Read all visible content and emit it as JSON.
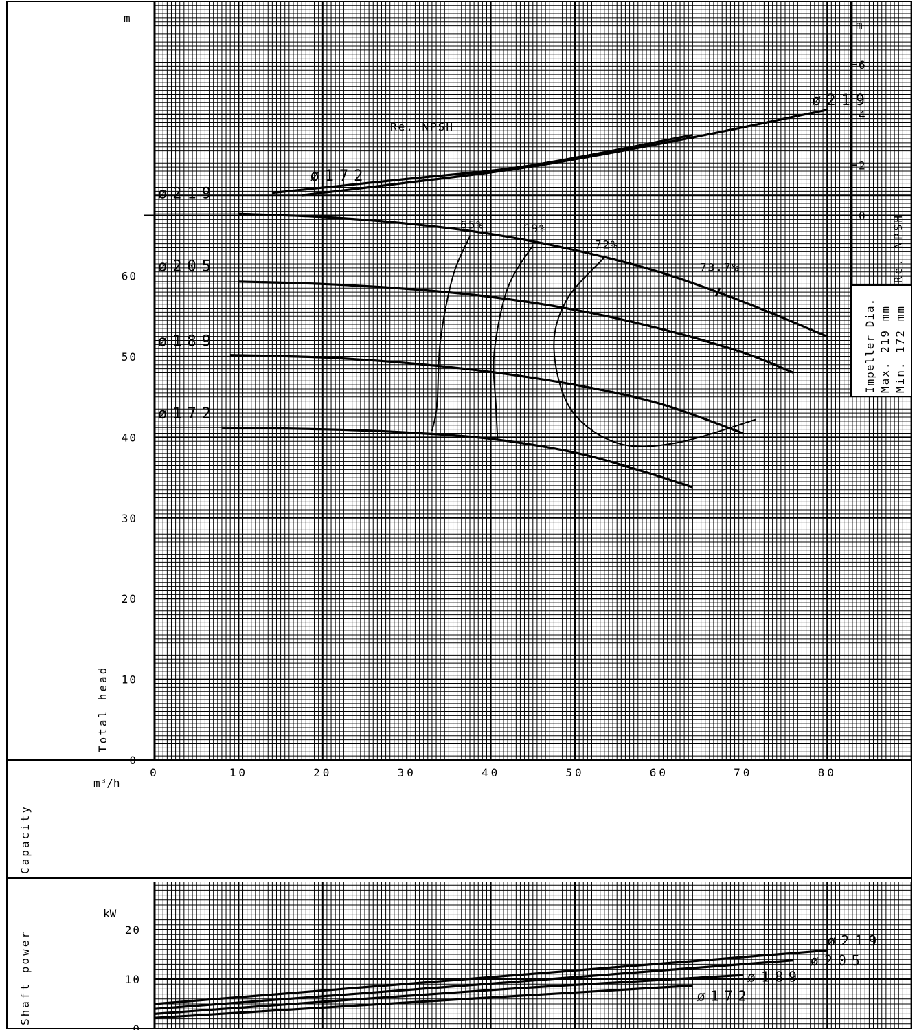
{
  "chart_data": [
    {
      "type": "line",
      "panel": "head",
      "ylabel": "Total head",
      "y_unit": "m",
      "xlabel": "Capacity",
      "x_unit": "m³/h",
      "x_ticks": [
        0,
        10,
        20,
        30,
        40,
        50,
        60,
        70,
        80
      ],
      "y_ticks": [
        0,
        10,
        20,
        30,
        40,
        50,
        60
      ],
      "xlim": [
        0,
        88
      ],
      "ylim": [
        0,
        93
      ],
      "grid": true,
      "series": [
        {
          "name": "ø219",
          "points": [
            [
              0,
              67.7
            ],
            [
              10,
              67.7
            ],
            [
              20,
              67.3
            ],
            [
              30,
              66.5
            ],
            [
              40,
              65.2
            ],
            [
              50,
              63.2
            ],
            [
              60,
              60.5
            ],
            [
              70,
              56.8
            ],
            [
              80,
              52.5
            ]
          ]
        },
        {
          "name": "ø205",
          "points": [
            [
              0,
              59.3
            ],
            [
              10,
              59.3
            ],
            [
              20,
              59
            ],
            [
              30,
              58.4
            ],
            [
              40,
              57.4
            ],
            [
              50,
              55.8
            ],
            [
              60,
              53.5
            ],
            [
              70,
              50.5
            ],
            [
              76,
              48
            ]
          ]
        },
        {
          "name": "ø189",
          "points": [
            [
              0,
              50.2
            ],
            [
              9,
              50.2
            ],
            [
              20,
              49.9
            ],
            [
              30,
              49.2
            ],
            [
              40,
              48.1
            ],
            [
              50,
              46.5
            ],
            [
              60,
              44.2
            ],
            [
              70,
              40.5
            ]
          ]
        },
        {
          "name": "ø172",
          "points": [
            [
              0,
              41.2
            ],
            [
              8,
              41.2
            ],
            [
              20,
              41
            ],
            [
              30,
              40.6
            ],
            [
              40,
              39.8
            ],
            [
              50,
              38.1
            ],
            [
              58,
              35.8
            ],
            [
              64,
              33.8
            ]
          ]
        }
      ],
      "efficiency_curves": [
        {
          "label": "65%",
          "points": [
            [
              37.5,
              64.9
            ],
            [
              35.5,
              60
            ],
            [
              34,
              52
            ],
            [
              33.6,
              44
            ],
            [
              33,
              40.8
            ]
          ]
        },
        {
          "label": "69%",
          "points": [
            [
              45,
              63.8
            ],
            [
              42,
              58.5
            ],
            [
              40.4,
              50.5
            ],
            [
              40.6,
              44
            ],
            [
              40.8,
              39.8
            ]
          ]
        },
        {
          "label": "72%",
          "points": [
            [
              53.5,
              62.3
            ],
            [
              49,
              57
            ],
            [
              47.5,
              51
            ],
            [
              49.5,
              43.5
            ],
            [
              55,
              39.3
            ],
            [
              62,
              39.3
            ],
            [
              71.5,
              42.2
            ]
          ]
        }
      ],
      "annotations": [
        {
          "text": "65%",
          "x": 37.5,
          "y": 65.9
        },
        {
          "text": "69%",
          "x": 45,
          "y": 65.4
        },
        {
          "text": "72%",
          "x": 53.5,
          "y": 63.4
        },
        {
          "text": "73.7%",
          "x": 66,
          "y": 60.6
        }
      ],
      "best_efficiency_marker": {
        "x": 67,
        "y": 58
      },
      "head_curve_labels": [
        {
          "text": "ø219",
          "y": 70.3
        },
        {
          "text": "ø205",
          "y": 61.3
        },
        {
          "text": "ø189",
          "y": 52
        },
        {
          "text": "ø172",
          "y": 43
        }
      ]
    },
    {
      "type": "line",
      "panel": "npsh",
      "title": "Re. NPSH",
      "ylabel": "Re. NPSH",
      "y_unit": "m",
      "y_ticks": [
        0,
        2,
        4,
        6
      ],
      "series": [
        {
          "name": "ø219",
          "points": [
            [
              17.5,
              0.8
            ],
            [
              30,
              1.3
            ],
            [
              45,
              1.95
            ],
            [
              64,
              3.1
            ],
            [
              80,
              4.2
            ]
          ]
        },
        {
          "name": "ø172",
          "points": [
            [
              14,
              0.9
            ],
            [
              30,
              1.45
            ],
            [
              45,
              2.0
            ],
            [
              64,
              3.2
            ]
          ]
        }
      ],
      "curve_labels": [
        {
          "text": "ø219",
          "x": 79,
          "y": 4.6
        },
        {
          "text": "ø172",
          "x": 18.5,
          "y": 1.6
        }
      ]
    },
    {
      "type": "line",
      "panel": "power",
      "ylabel": "Shaft power",
      "y_unit": "kW",
      "y_ticks": [
        0,
        10,
        20
      ],
      "series": [
        {
          "name": "ø219",
          "points": [
            [
              0,
              5
            ],
            [
              40,
              10.4
            ],
            [
              80,
              15.8
            ]
          ]
        },
        {
          "name": "ø205",
          "points": [
            [
              0,
              4
            ],
            [
              40,
              9.1
            ],
            [
              76,
              13.8
            ]
          ]
        },
        {
          "name": "ø189",
          "points": [
            [
              0,
              3
            ],
            [
              40,
              7.8
            ],
            [
              70,
              10.8
            ]
          ]
        },
        {
          "name": "ø172",
          "points": [
            [
              0,
              2.2
            ],
            [
              40,
              6.3
            ],
            [
              64,
              8.7
            ]
          ]
        }
      ],
      "curve_labels": [
        {
          "text": "ø219",
          "x": 80,
          "y": 16.8
        },
        {
          "text": "ø205",
          "x": 78,
          "y": 12.8
        },
        {
          "text": "ø189",
          "x": 70.5,
          "y": 9.5
        },
        {
          "text": "ø172",
          "x": 64.5,
          "y": 5.6
        }
      ]
    }
  ],
  "impeller_box": {
    "title": "Impeller Dia.",
    "max_line": "Max. 219 mm",
    "min_line": "Min. 172 mm"
  }
}
